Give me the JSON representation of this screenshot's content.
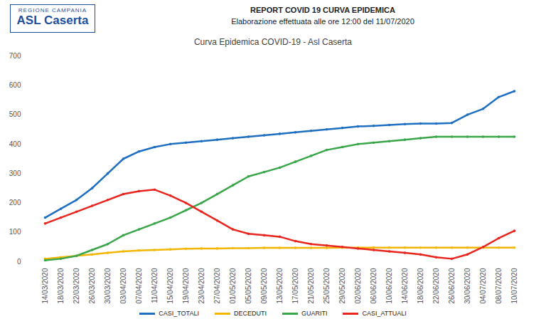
{
  "header": {
    "logo_sub": "REGIONE CAMPANIA",
    "logo": "ASL Caserta",
    "title": "REPORT COVID 19   CURVA EPIDEMICA",
    "subtitle": "Elaborazione effettuata alle ore 12:00 del 11/07/2020"
  },
  "chart_data": {
    "type": "line",
    "title": "Curva Epidemica COVID-19 - Asl Caserta",
    "x": [
      "14/03/2020",
      "18/03/2020",
      "22/03/2020",
      "26/03/2020",
      "30/03/2020",
      "03/04/2020",
      "07/04/2020",
      "11/04/2020",
      "15/04/2020",
      "19/04/2020",
      "23/04/2020",
      "27/04/2020",
      "01/05/2020",
      "05/05/2020",
      "09/05/2020",
      "13/05/2020",
      "17/05/2020",
      "21/05/2020",
      "25/05/2020",
      "29/05/2020",
      "02/06/2020",
      "06/06/2020",
      "10/06/2020",
      "14/06/2020",
      "18/06/2020",
      "22/06/2020",
      "26/06/2020",
      "30/06/2020",
      "04/07/2020",
      "08/07/2020",
      "10/07/2020"
    ],
    "series": [
      {
        "name": "CASI_TOTALI",
        "color": "#1f6fc0",
        "values": [
          150,
          180,
          210,
          250,
          300,
          350,
          375,
          390,
          400,
          405,
          410,
          415,
          420,
          425,
          430,
          435,
          440,
          445,
          450,
          455,
          460,
          462,
          465,
          468,
          470,
          470,
          472,
          500,
          520,
          560,
          580
        ]
      },
      {
        "name": "DECEDUTI",
        "color": "#f2b705",
        "values": [
          10,
          15,
          20,
          25,
          30,
          35,
          38,
          40,
          42,
          44,
          45,
          45,
          46,
          46,
          47,
          47,
          47,
          47,
          47,
          48,
          48,
          48,
          48,
          48,
          48,
          48,
          48,
          48,
          48,
          48,
          48
        ]
      },
      {
        "name": "GUARITI",
        "color": "#3aa64a",
        "values": [
          5,
          10,
          20,
          40,
          60,
          90,
          110,
          130,
          150,
          175,
          200,
          230,
          260,
          290,
          305,
          320,
          340,
          360,
          380,
          390,
          400,
          405,
          410,
          415,
          420,
          425,
          425,
          425,
          425,
          425,
          425
        ]
      },
      {
        "name": "CASI_ATTUALI",
        "color": "#e8251e",
        "values": [
          130,
          150,
          170,
          190,
          210,
          230,
          240,
          245,
          225,
          200,
          170,
          140,
          110,
          95,
          90,
          85,
          70,
          60,
          55,
          50,
          45,
          40,
          35,
          30,
          25,
          15,
          10,
          25,
          50,
          80,
          105
        ]
      }
    ],
    "ylim": [
      0,
      700
    ],
    "yticks": [
      0,
      100,
      200,
      300,
      400,
      500,
      600,
      700
    ],
    "grid": false,
    "legend": "bottom",
    "marker": "circle"
  }
}
